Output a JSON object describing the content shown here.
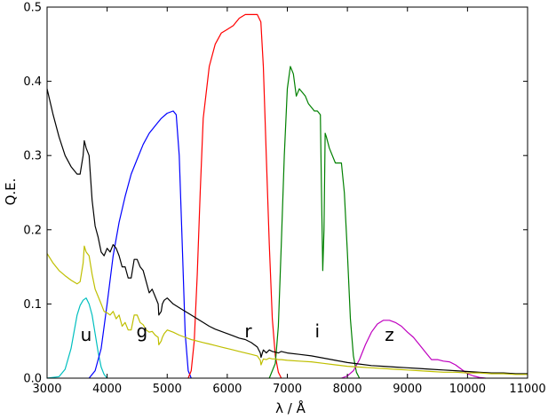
{
  "chart_data": {
    "type": "line",
    "title": "",
    "xlabel": "λ / Å",
    "ylabel": "Q.E.",
    "xlim": [
      3000,
      11000
    ],
    "ylim": [
      0,
      0.5
    ],
    "xticks": [
      3000,
      4000,
      5000,
      6000,
      7000,
      8000,
      9000,
      10000,
      11000
    ],
    "xtick_labels": [
      "3000",
      "4000",
      "5000",
      "6000",
      "7000",
      "8000",
      "9000",
      "10000",
      "11000"
    ],
    "yticks": [
      0,
      0.1,
      0.2,
      0.3,
      0.4,
      0.5
    ],
    "ytick_labels": [
      "0.0",
      "0.1",
      "0.2",
      "0.3",
      "0.4",
      "0.5"
    ],
    "grid": false,
    "legend": "none",
    "series": [
      {
        "color": "#00bfbf",
        "x": [
          3000,
          3200,
          3300,
          3400,
          3500,
          3550,
          3600,
          3650,
          3700,
          3750,
          3800,
          3850,
          3900,
          3950,
          4000
        ],
        "y": [
          0,
          0.002,
          0.012,
          0.04,
          0.085,
          0.098,
          0.105,
          0.108,
          0.1,
          0.085,
          0.06,
          0.035,
          0.015,
          0.005,
          0
        ]
      },
      {
        "color": "#0000ff",
        "x": [
          3700,
          3800,
          3900,
          4000,
          4100,
          4200,
          4300,
          4400,
          4500,
          4600,
          4700,
          4800,
          4900,
          5000,
          5100,
          5150,
          5200,
          5250,
          5300,
          5350,
          5400
        ],
        "y": [
          0,
          0.01,
          0.04,
          0.1,
          0.165,
          0.21,
          0.245,
          0.275,
          0.295,
          0.315,
          0.33,
          0.34,
          0.35,
          0.357,
          0.36,
          0.355,
          0.3,
          0.18,
          0.06,
          0.01,
          0
        ]
      },
      {
        "color": "#ff0000",
        "x": [
          5350,
          5400,
          5450,
          5500,
          5550,
          5600,
          5700,
          5800,
          5900,
          6000,
          6100,
          6200,
          6300,
          6400,
          6500,
          6560,
          6600,
          6650,
          6700,
          6750,
          6800,
          6850,
          6900
        ],
        "y": [
          0,
          0.01,
          0.05,
          0.14,
          0.25,
          0.35,
          0.42,
          0.45,
          0.465,
          0.47,
          0.475,
          0.485,
          0.49,
          0.49,
          0.49,
          0.48,
          0.42,
          0.3,
          0.18,
          0.08,
          0.03,
          0.008,
          0
        ]
      },
      {
        "color": "#008000",
        "x": [
          6700,
          6800,
          6850,
          6900,
          6950,
          7000,
          7050,
          7100,
          7150,
          7200,
          7250,
          7300,
          7350,
          7400,
          7450,
          7500,
          7550,
          7570,
          7590,
          7610,
          7630,
          7650,
          7700,
          7800,
          7900,
          7950,
          8000,
          8050,
          8100,
          8150,
          8200
        ],
        "y": [
          0,
          0.02,
          0.07,
          0.18,
          0.3,
          0.39,
          0.42,
          0.41,
          0.38,
          0.39,
          0.385,
          0.38,
          0.37,
          0.365,
          0.36,
          0.36,
          0.355,
          0.25,
          0.145,
          0.2,
          0.33,
          0.325,
          0.31,
          0.29,
          0.29,
          0.25,
          0.17,
          0.08,
          0.03,
          0.008,
          0
        ]
      },
      {
        "color": "#bf00bf",
        "x": [
          7900,
          8000,
          8100,
          8200,
          8300,
          8400,
          8500,
          8600,
          8700,
          8800,
          8900,
          9000,
          9100,
          9200,
          9300,
          9400,
          9500,
          9600,
          9700,
          9800,
          9900,
          10000,
          10100,
          10200,
          10300
        ],
        "y": [
          0,
          0.003,
          0.01,
          0.025,
          0.045,
          0.062,
          0.073,
          0.078,
          0.078,
          0.075,
          0.07,
          0.062,
          0.055,
          0.045,
          0.035,
          0.025,
          0.025,
          0.023,
          0.022,
          0.018,
          0.012,
          0.006,
          0.003,
          0.001,
          0
        ]
      },
      {
        "color": "#000000",
        "x": [
          3000,
          3100,
          3200,
          3300,
          3400,
          3500,
          3550,
          3600,
          3620,
          3650,
          3700,
          3750,
          3800,
          3850,
          3900,
          3950,
          4000,
          4050,
          4100,
          4150,
          4200,
          4250,
          4300,
          4350,
          4400,
          4450,
          4500,
          4550,
          4600,
          4650,
          4700,
          4750,
          4800,
          4850,
          4860,
          4900,
          4920,
          4950,
          5000,
          5100,
          5200,
          5300,
          5400,
          5500,
          5600,
          5700,
          5800,
          5900,
          6000,
          6100,
          6200,
          6300,
          6400,
          6500,
          6550,
          6563,
          6600,
          6650,
          6700,
          6750,
          6800,
          6850,
          6900,
          7000,
          7200,
          7400,
          7600,
          7800,
          8000,
          8200,
          8400,
          8600,
          8800,
          9000,
          9200,
          9400,
          9600,
          9800,
          10000,
          10200,
          10400,
          10600,
          10800,
          11000
        ],
        "y": [
          0.39,
          0.355,
          0.325,
          0.3,
          0.285,
          0.275,
          0.275,
          0.3,
          0.32,
          0.31,
          0.3,
          0.24,
          0.205,
          0.19,
          0.17,
          0.165,
          0.175,
          0.17,
          0.18,
          0.175,
          0.165,
          0.15,
          0.15,
          0.135,
          0.135,
          0.16,
          0.16,
          0.15,
          0.145,
          0.13,
          0.115,
          0.12,
          0.11,
          0.1,
          0.085,
          0.09,
          0.1,
          0.105,
          0.108,
          0.1,
          0.095,
          0.09,
          0.085,
          0.08,
          0.075,
          0.07,
          0.066,
          0.063,
          0.06,
          0.057,
          0.054,
          0.052,
          0.048,
          0.042,
          0.034,
          0.028,
          0.038,
          0.034,
          0.038,
          0.036,
          0.035,
          0.034,
          0.036,
          0.034,
          0.032,
          0.03,
          0.027,
          0.024,
          0.021,
          0.019,
          0.017,
          0.016,
          0.015,
          0.014,
          0.013,
          0.012,
          0.011,
          0.01,
          0.009,
          0.008,
          0.007,
          0.007,
          0.006,
          0.006
        ]
      },
      {
        "color": "#bfbf00",
        "x": [
          3000,
          3100,
          3200,
          3300,
          3400,
          3500,
          3550,
          3600,
          3620,
          3650,
          3700,
          3750,
          3800,
          3850,
          3900,
          3950,
          4000,
          4050,
          4100,
          4150,
          4200,
          4250,
          4300,
          4350,
          4400,
          4450,
          4500,
          4550,
          4600,
          4650,
          4700,
          4750,
          4800,
          4850,
          4860,
          4900,
          4920,
          4950,
          5000,
          5100,
          5200,
          5300,
          5400,
          5500,
          5600,
          5700,
          5800,
          5900,
          6000,
          6100,
          6200,
          6300,
          6400,
          6500,
          6550,
          6563,
          6600,
          6650,
          6700,
          6750,
          6800,
          6850,
          6900,
          7000,
          7200,
          7400,
          7600,
          7800,
          8000,
          8200,
          8400,
          8600,
          8800,
          9000,
          9200,
          9400,
          9600,
          9800,
          10000,
          10200,
          10400,
          10600,
          10800,
          11000
        ],
        "y": [
          0.168,
          0.155,
          0.145,
          0.138,
          0.132,
          0.127,
          0.13,
          0.155,
          0.178,
          0.17,
          0.165,
          0.14,
          0.12,
          0.11,
          0.1,
          0.09,
          0.088,
          0.085,
          0.09,
          0.08,
          0.085,
          0.07,
          0.075,
          0.065,
          0.065,
          0.085,
          0.085,
          0.075,
          0.072,
          0.065,
          0.062,
          0.063,
          0.058,
          0.055,
          0.045,
          0.05,
          0.055,
          0.06,
          0.065,
          0.062,
          0.058,
          0.055,
          0.052,
          0.05,
          0.048,
          0.046,
          0.044,
          0.042,
          0.04,
          0.038,
          0.036,
          0.034,
          0.032,
          0.03,
          0.024,
          0.018,
          0.026,
          0.025,
          0.027,
          0.026,
          0.026,
          0.025,
          0.025,
          0.024,
          0.023,
          0.022,
          0.02,
          0.018,
          0.016,
          0.015,
          0.014,
          0.013,
          0.012,
          0.011,
          0.01,
          0.009,
          0.008,
          0.008,
          0.007,
          0.007,
          0.006,
          0.006,
          0.005,
          0.005
        ]
      }
    ],
    "annotations": [
      {
        "text": "u",
        "x": 3650,
        "y": 0.05
      },
      {
        "text": "g",
        "x": 4580,
        "y": 0.055
      },
      {
        "text": "r",
        "x": 6350,
        "y": 0.055
      },
      {
        "text": "i",
        "x": 7500,
        "y": 0.055
      },
      {
        "text": "z",
        "x": 8700,
        "y": 0.05
      }
    ]
  }
}
